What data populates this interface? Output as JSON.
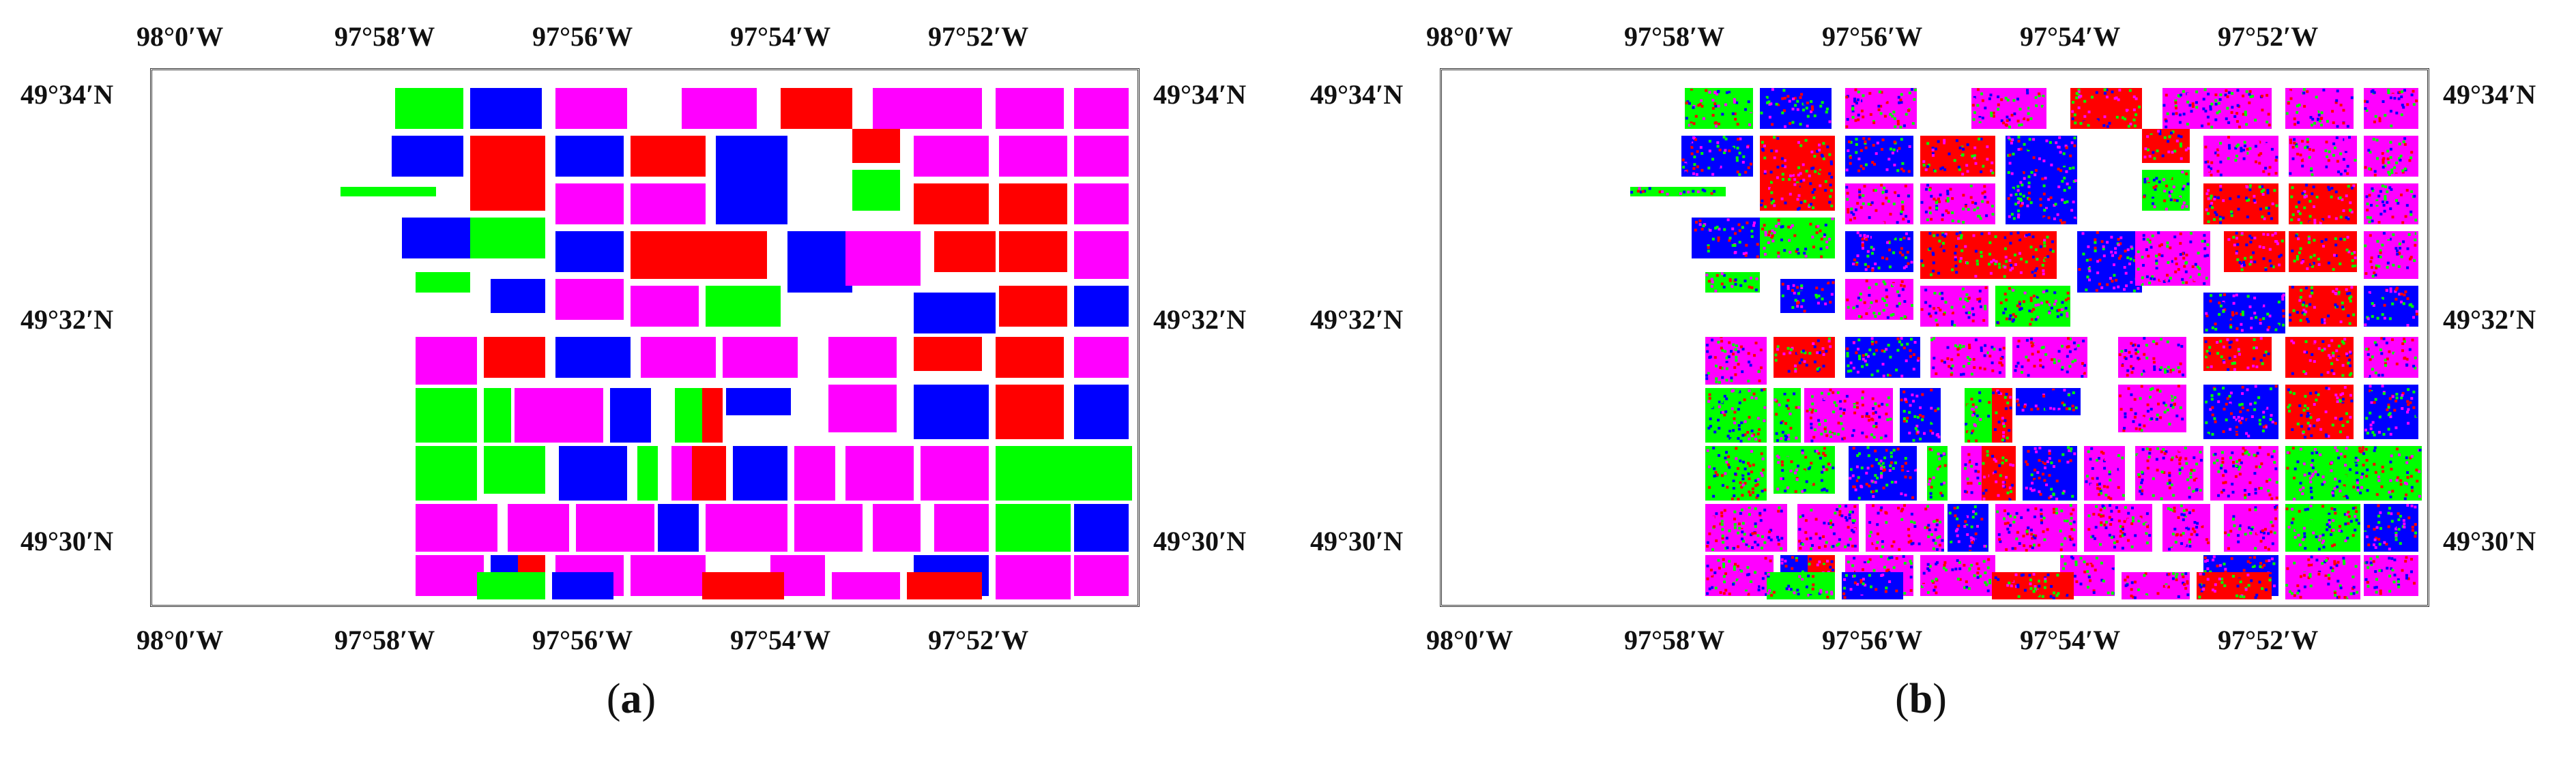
{
  "panels": [
    {
      "id": "a",
      "caption": "a",
      "lon_labels_top": [
        "98°0′W",
        "97°58′W",
        "97°56′W",
        "97°54′W",
        "97°52′W"
      ],
      "lon_labels_bottom": [
        "98°0′W",
        "97°58′W",
        "97°56′W",
        "97°54′W",
        "97°52′W"
      ],
      "lat_labels_left": [
        "49°34′N",
        "49°32′N",
        "49°30′N"
      ],
      "lat_labels_right": [
        "49°34′N",
        "49°32′N",
        "49°30′N"
      ]
    },
    {
      "id": "b",
      "caption": "b",
      "lon_labels_top": [
        "98°0′W",
        "97°58′W",
        "97°56′W",
        "97°54′W",
        "97°52′W"
      ],
      "lon_labels_bottom": [
        "98°0′W",
        "97°58′W",
        "97°56′W",
        "97°54′W",
        "97°52′W"
      ],
      "lat_labels_left": [
        "49°34′N",
        "49°32′N",
        "49°30′N"
      ],
      "lat_labels_right": [
        "49°34′N",
        "49°32′N",
        "49°30′N"
      ]
    }
  ],
  "class_colors": {
    "green": "#00ff00",
    "blue": "#0000ff",
    "red": "#ff0000",
    "magenta": "#ff00ff"
  }
}
